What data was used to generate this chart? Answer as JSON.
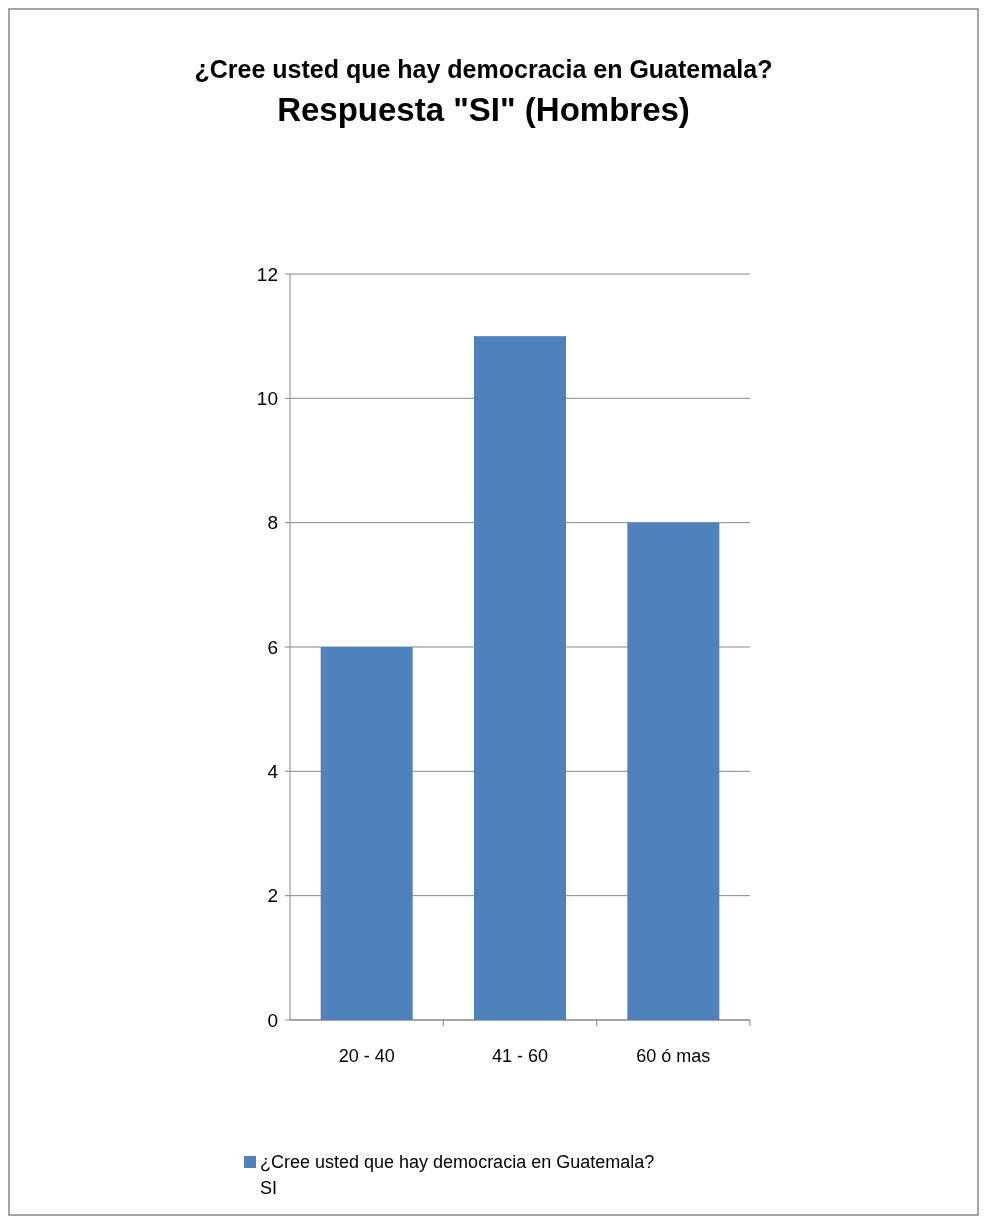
{
  "chart_data": {
    "type": "bar",
    "title": "¿Cree usted que hay democracia en Guatemala?",
    "subtitle": "Respuesta \"SI\" (Hombres)",
    "categories": [
      "20 - 40",
      "41 - 60",
      "60 ó mas"
    ],
    "series": [
      {
        "name": "¿Cree usted que hay democracia en Guatemala? SI",
        "color": "#4f81bd",
        "values": [
          6,
          11,
          8
        ]
      }
    ],
    "ylim": [
      0,
      12
    ],
    "yticks": [
      0,
      2,
      4,
      6,
      8,
      10,
      12
    ],
    "grid": "y",
    "legend": "bottom"
  }
}
